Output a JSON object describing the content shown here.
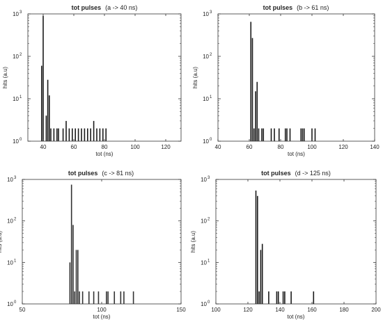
{
  "chart_data": [
    {
      "type": "bar",
      "title": "tot pulses",
      "subtitle": "(a ->  40 ns)",
      "xlabel": "tot (ns)",
      "ylabel": "hits (a.u)",
      "xlim": [
        30,
        130
      ],
      "xticks": [
        40,
        60,
        80,
        100,
        120
      ],
      "yscale": "log",
      "ylim": [
        1,
        1000
      ],
      "yticks": [
        "10",
        "10",
        "10",
        "10"
      ],
      "ytick_exponents": [
        "0",
        "1",
        "2",
        "3"
      ],
      "bar_color": "#1a1a1a",
      "x": [
        39,
        40,
        42,
        43,
        44,
        45,
        47,
        49,
        50,
        53,
        55,
        57,
        59,
        61,
        63,
        65,
        67,
        69,
        71,
        73,
        75,
        77,
        79,
        81
      ],
      "values": [
        60,
        900,
        4,
        28,
        12,
        2,
        2,
        2,
        2,
        2,
        3,
        2,
        2,
        2,
        2,
        2,
        2,
        2,
        2,
        3,
        2,
        2,
        2,
        2
      ]
    },
    {
      "type": "bar",
      "title": "tot pulses",
      "subtitle": "(b -> 61 ns)",
      "xlabel": "tot (ns)",
      "ylabel": "hits (a.u)",
      "xlim": [
        40,
        140
      ],
      "xticks": [
        40,
        60,
        80,
        100,
        120,
        140
      ],
      "yscale": "log",
      "ylim": [
        1,
        1000
      ],
      "yticks": [
        "10",
        "10",
        "10",
        "10"
      ],
      "ytick_exponents": [
        "0",
        "1",
        "2",
        "3"
      ],
      "bar_color": "#1a1a1a",
      "x": [
        61,
        62,
        63,
        64,
        65,
        66,
        68,
        69,
        74,
        76,
        79,
        83,
        84,
        86,
        93,
        94,
        95,
        100,
        102
      ],
      "values": [
        650,
        270,
        2,
        15,
        25,
        2,
        2,
        2,
        2,
        2,
        2,
        2,
        2,
        2,
        2,
        2,
        2,
        2,
        2
      ]
    },
    {
      "type": "bar",
      "title": "tot pulses",
      "subtitle": "(c -> 81 ns)",
      "xlabel": "tot (ns)",
      "ylabel": "hits (a.u)",
      "xlim": [
        50,
        150
      ],
      "xticks": [
        50,
        100,
        150
      ],
      "yscale": "log",
      "ylim": [
        1,
        1000
      ],
      "yticks": [
        "10",
        "10",
        "10",
        "10"
      ],
      "ytick_exponents": [
        "0",
        "1",
        "2",
        "3"
      ],
      "bar_color": "#333333",
      "x": [
        80,
        81,
        82,
        83,
        84,
        85,
        86,
        88,
        92,
        95,
        98,
        103,
        104,
        108,
        112,
        114,
        120
      ],
      "values": [
        10,
        750,
        80,
        2,
        20,
        20,
        2,
        2,
        2,
        2,
        2,
        2,
        2,
        2,
        2,
        2,
        2
      ]
    },
    {
      "type": "bar",
      "title": "tot pulses",
      "subtitle": "(d -> 125 ns)",
      "xlabel": "tot (ns)",
      "ylabel": "hits (a.u)",
      "xlim": [
        100,
        200
      ],
      "xticks": [
        100,
        120,
        140,
        160,
        180,
        200
      ],
      "yscale": "log",
      "ylim": [
        1,
        1000
      ],
      "yticks": [
        "10",
        "10",
        "10",
        "10"
      ],
      "ytick_exponents": [
        "0",
        "1",
        "2",
        "3"
      ],
      "bar_color": "#1a1a1a",
      "x": [
        125,
        126,
        127,
        128,
        129,
        133,
        138,
        139,
        142,
        143,
        147,
        161
      ],
      "values": [
        540,
        400,
        2,
        20,
        28,
        2,
        2,
        2,
        2,
        2,
        2,
        2
      ]
    }
  ]
}
